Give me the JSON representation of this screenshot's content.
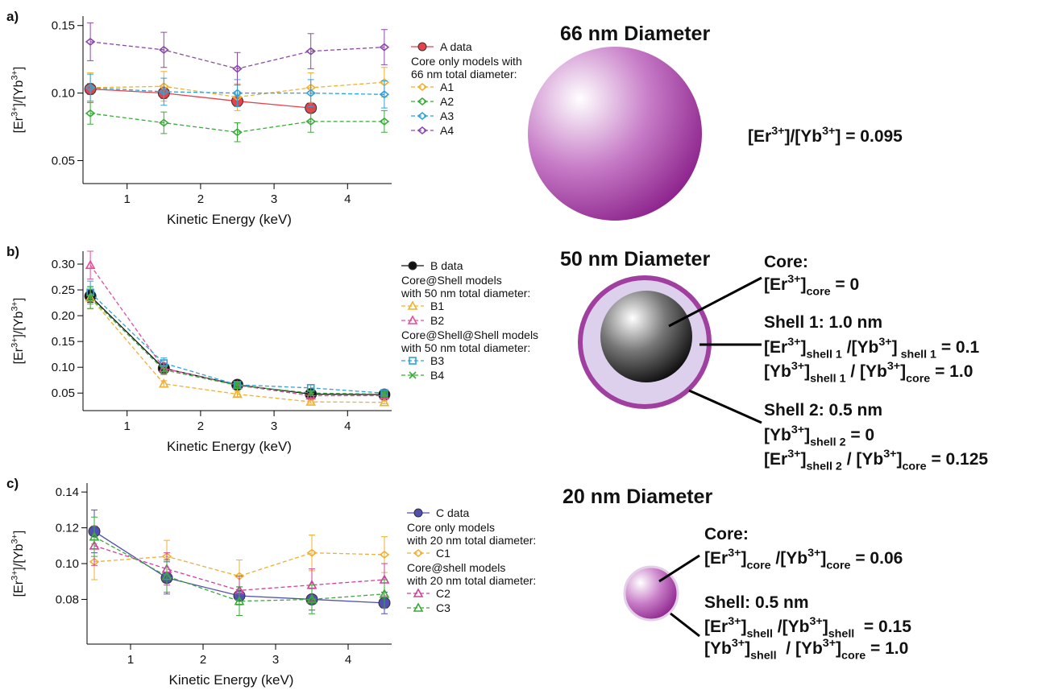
{
  "chart_data": [
    {
      "type": "line",
      "panel": "a)",
      "xlabel": "Kinetic Energy (keV)",
      "ylabel": [
        "[Er",
        {
          "sup": "3+"
        },
        "]/[Yb",
        {
          "sup": "3+"
        },
        "]"
      ],
      "x": [
        0.5,
        1.5,
        2.5,
        3.5,
        4.5
      ],
      "xlim": [
        0.4,
        4.6
      ],
      "xticks": [
        1,
        2,
        3,
        4
      ],
      "ylim": [
        0.033,
        0.157
      ],
      "yticks": [
        0.05,
        {
          "value": 0.1,
          "label": "0.10"
        },
        0.15
      ],
      "series": [
        {
          "name": "A data",
          "color": "#e8414a",
          "marker": "circle",
          "dash": false,
          "values": [
            0.103,
            0.1,
            0.094,
            0.089,
            null
          ],
          "errors": [
            0.004,
            0.004,
            0.004,
            0.003,
            null
          ]
        },
        {
          "name": "A1",
          "legend_heading": [
            "Core only models with",
            "66 nm total diameter:"
          ],
          "color": "#f0b030",
          "marker": "diamond",
          "dash": true,
          "values": [
            0.104,
            0.105,
            0.097,
            0.104,
            0.108
          ],
          "errors": [
            0.011,
            0.011,
            0.01,
            0.011,
            0.011
          ]
        },
        {
          "name": "A2",
          "color": "#3aaa3a",
          "marker": "diamond",
          "dash": true,
          "values": [
            0.085,
            0.078,
            0.071,
            0.079,
            0.079
          ],
          "errors": [
            0.008,
            0.008,
            0.007,
            0.008,
            0.008
          ]
        },
        {
          "name": "A3",
          "color": "#30a0d8",
          "marker": "diamond",
          "dash": true,
          "values": [
            0.104,
            0.101,
            0.1,
            0.1,
            0.099
          ],
          "errors": [
            0.01,
            0.01,
            0.01,
            0.01,
            0.01
          ]
        },
        {
          "name": "A4",
          "color": "#8c4aa8",
          "marker": "diamond",
          "dash": true,
          "values": [
            0.138,
            0.132,
            0.118,
            0.131,
            0.134
          ],
          "errors": [
            0.014,
            0.013,
            0.012,
            0.013,
            0.013
          ]
        }
      ]
    },
    {
      "type": "line",
      "panel": "b)",
      "xlabel": "Kinetic Energy (keV)",
      "ylabel": [
        "[Er",
        {
          "sup": "3+"
        },
        "]/[Yb",
        {
          "sup": "3+"
        },
        "]"
      ],
      "x": [
        0.5,
        1.5,
        2.5,
        3.5,
        4.5
      ],
      "xlim": [
        0.4,
        4.6
      ],
      "xticks": [
        1,
        2,
        3,
        4
      ],
      "ylim": [
        0.016,
        0.325
      ],
      "yticks": [
        0.05,
        {
          "value": 0.1,
          "label": "0.10"
        },
        0.15,
        {
          "value": 0.2,
          "label": "0.20"
        },
        0.25,
        {
          "value": 0.3,
          "label": "0.30"
        }
      ],
      "series": [
        {
          "name": "B data",
          "color": "#111111",
          "marker": "circle",
          "dash": false,
          "values": [
            0.238,
            0.098,
            0.066,
            0.048,
            0.047
          ],
          "errors": [
            0.012,
            0.006,
            0.004,
            0.003,
            0.003
          ]
        },
        {
          "name": "B1",
          "legend_heading": [
            "Core@Shell models",
            "with 50 nm total diameter:"
          ],
          "color": "#f0b030",
          "marker": "triangle",
          "dash": true,
          "values": [
            0.235,
            0.068,
            0.048,
            0.033,
            0.032
          ],
          "errors": [
            0.022,
            0.006,
            0.005,
            0.003,
            0.003
          ]
        },
        {
          "name": "B2",
          "color": "#e0509a",
          "marker": "triangle",
          "dash": true,
          "values": [
            0.298,
            0.098,
            0.065,
            0.045,
            0.045
          ],
          "errors": [
            0.027,
            0.01,
            0.006,
            0.004,
            0.004
          ]
        },
        {
          "name": "B3",
          "legend_heading": [
            "Core@Shell@Shell models",
            "with 50 nm total diameter:"
          ],
          "color": "#30a0d8",
          "marker": "square",
          "dash": true,
          "values": [
            0.245,
            0.108,
            0.066,
            0.06,
            0.05
          ],
          "errors": [
            0.022,
            0.01,
            0.006,
            0.006,
            0.005
          ]
        },
        {
          "name": "B4",
          "color": "#3aaa3a",
          "marker": "x",
          "dash": true,
          "values": [
            0.235,
            0.095,
            0.065,
            0.05,
            0.048
          ],
          "errors": [
            0.021,
            0.009,
            0.006,
            0.005,
            0.005
          ]
        }
      ]
    },
    {
      "type": "line",
      "panel": "c)",
      "xlabel": "Kinetic Energy (keV)",
      "ylabel": [
        "[Er",
        {
          "sup": "3+"
        },
        "]/[Yb",
        {
          "sup": "3+"
        },
        "]"
      ],
      "x": [
        0.5,
        1.5,
        2.5,
        3.5,
        4.5
      ],
      "xlim": [
        0.4,
        4.6
      ],
      "xticks": [
        1,
        2,
        3,
        4
      ],
      "ylim": [
        0.055,
        0.145
      ],
      "yticks": [
        0.08,
        {
          "value": 0.1,
          "label": "0.10"
        },
        0.12,
        0.14
      ],
      "series": [
        {
          "name": "C data",
          "color": "#5050b0",
          "marker": "circle",
          "dash": false,
          "values": [
            0.118,
            0.092,
            0.082,
            0.08,
            0.078
          ],
          "errors": [
            0.012,
            0.009,
            0.005,
            0.006,
            0.006
          ]
        },
        {
          "name": "C1",
          "legend_heading": [
            "Core only models",
            "with 20 nm total diameter:"
          ],
          "color": "#f0b030",
          "marker": "diamond",
          "dash": true,
          "values": [
            0.101,
            0.104,
            0.093,
            0.106,
            0.105
          ],
          "errors": [
            0.01,
            0.009,
            0.009,
            0.01,
            0.01
          ]
        },
        {
          "name": "C2",
          "legend_heading": [
            "Core@shell models",
            "with 20 nm total diameter:"
          ],
          "color": "#d0409a",
          "marker": "triangle",
          "dash": true,
          "values": [
            0.11,
            0.097,
            0.085,
            0.088,
            0.091
          ],
          "errors": [
            0.011,
            0.009,
            0.008,
            0.009,
            0.009
          ]
        },
        {
          "name": "C3",
          "color": "#3aaa3a",
          "marker": "triangle",
          "dash": true,
          "values": [
            0.115,
            0.093,
            0.079,
            0.08,
            0.083
          ],
          "errors": [
            0.011,
            0.009,
            0.008,
            0.008,
            0.008
          ]
        }
      ]
    }
  ],
  "diagrams": [
    {
      "title": "66 nm Diameter",
      "blocks": [
        {
          "lines": [
            [
              "[Er",
              {
                "sup": "3+"
              },
              "]/[Yb",
              {
                "sup": "3+"
              },
              "] = 0.095"
            ]
          ]
        }
      ]
    },
    {
      "title": "50 nm Diameter",
      "blocks": [
        {
          "heading": "Core:",
          "lines": [
            [
              "[Er",
              {
                "sup": "3+"
              },
              "]",
              {
                "sub": "core"
              },
              " = 0"
            ]
          ]
        },
        {
          "heading": "Shell 1: 1.0 nm",
          "lines": [
            [
              "[Er",
              {
                "sup": "3+"
              },
              "]",
              {
                "sub": "shell 1"
              },
              " /[Yb",
              {
                "sup": "3+"
              },
              "]",
              {
                "sub": " shell 1"
              },
              " = 0.1"
            ],
            [
              "[Yb",
              {
                "sup": "3+"
              },
              "]",
              {
                "sub": "shell 1"
              },
              " / [Yb",
              {
                "sup": "3+"
              },
              "]",
              {
                "sub": "core"
              },
              " = 1.0"
            ]
          ]
        },
        {
          "heading": "Shell 2: 0.5 nm",
          "lines": [
            [
              "[Yb",
              {
                "sup": "3+"
              },
              "]",
              {
                "sub": "shell 2"
              },
              " = 0"
            ],
            [
              "[Er",
              {
                "sup": "3+"
              },
              "]",
              {
                "sub": "shell 2"
              },
              " / [Yb",
              {
                "sup": "3+"
              },
              "]",
              {
                "sub": "core"
              },
              " = 0.125"
            ]
          ]
        }
      ]
    },
    {
      "title": "20 nm Diameter",
      "blocks": [
        {
          "heading": "Core:",
          "lines": [
            [
              "[Er",
              {
                "sup": "3+"
              },
              "]",
              {
                "sub": "core"
              },
              " /[Yb",
              {
                "sup": "3+"
              },
              "]",
              {
                "sub": "core"
              },
              " = 0.06"
            ]
          ]
        },
        {
          "heading": "Shell: 0.5 nm",
          "lines": [
            [
              "[Er",
              {
                "sup": "3+"
              },
              "]",
              {
                "sub": "shell"
              },
              " /[Yb",
              {
                "sup": "3+"
              },
              "]",
              {
                "sub": "shell"
              },
              "  = 0.15"
            ],
            [
              "[Yb",
              {
                "sup": "3+"
              },
              "]",
              {
                "sub": "shell"
              },
              "  / [Yb",
              {
                "sup": "3+"
              },
              "]",
              {
                "sub": "core"
              },
              " = 1.0"
            ]
          ]
        }
      ]
    }
  ]
}
